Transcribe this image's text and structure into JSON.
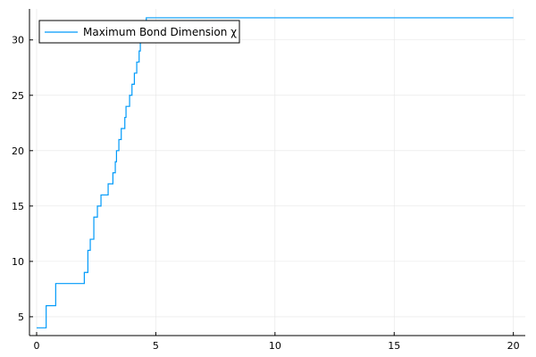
{
  "chart_data": {
    "type": "line",
    "title": "",
    "xlabel": "",
    "ylabel": "",
    "xlim": [
      -0.3,
      20.5
    ],
    "ylim": [
      3.3,
      32.8
    ],
    "xticks": [
      0,
      5,
      10,
      15,
      20
    ],
    "yticks": [
      5,
      10,
      15,
      20,
      25,
      30
    ],
    "grid": true,
    "legend_position": "top-left",
    "series": [
      {
        "name": "Maximum Bond Dimension χ",
        "color": "#009af9",
        "step": "post",
        "x": [
          0,
          0.3,
          0.4,
          0.8,
          1.8,
          2.0,
          2.15,
          2.25,
          2.4,
          2.55,
          2.7,
          2.85,
          3.0,
          3.2,
          3.3,
          3.35,
          3.45,
          3.55,
          3.6,
          3.7,
          3.75,
          3.8,
          3.9,
          4.0,
          4.05,
          4.1,
          4.2,
          4.3,
          4.35,
          4.45,
          4.5,
          4.6,
          20
        ],
        "y": [
          4,
          4,
          6,
          8,
          8,
          9,
          11,
          12,
          14,
          15,
          16,
          16,
          17,
          18,
          19,
          20,
          21,
          22,
          22,
          23,
          24,
          24,
          25,
          26,
          26,
          27,
          28,
          29,
          30,
          30,
          31,
          32,
          32
        ]
      }
    ]
  }
}
